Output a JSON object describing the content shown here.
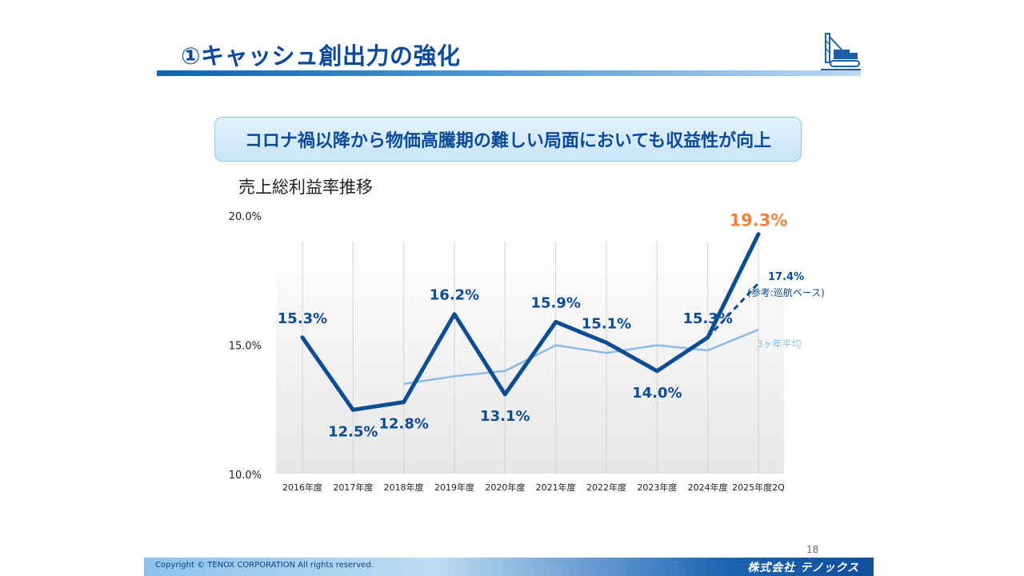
{
  "header": {
    "title": "①キャッシュ創出力の強化"
  },
  "callout": {
    "text": "コロナ禍以降から物価高騰期の難しい局面においても収益性が向上"
  },
  "chart_heading": "売上総利益率推移",
  "chart_data": {
    "type": "line",
    "title": "売上総利益率推移",
    "categories": [
      "2016年度",
      "2017年度",
      "2018年度",
      "2019年度",
      "2020年度",
      "2021年度",
      "2022年度",
      "2023年度",
      "2024年度",
      "2025年度2Q"
    ],
    "ylim": [
      10.0,
      20.0
    ],
    "yticks": [
      "10.0%",
      "15.0%",
      "20.0%"
    ],
    "grid": "vertical",
    "series": [
      {
        "role": "main",
        "values": [
          15.3,
          12.5,
          12.8,
          16.2,
          13.1,
          15.9,
          15.1,
          14.0,
          15.3,
          19.3
        ],
        "labels": [
          "15.3%",
          "12.5%",
          "12.8%",
          "16.2%",
          "13.1%",
          "15.9%",
          "15.1%",
          "14.0%",
          "15.3%",
          "19.3%"
        ],
        "color": "#0d4d93",
        "highlight_color": "#f0843c"
      },
      {
        "role": "reference",
        "name": "(参考:巡航ベース)",
        "value_label": "17.4%",
        "values": [
          null,
          null,
          null,
          null,
          null,
          null,
          null,
          null,
          15.3,
          17.4
        ],
        "color": "#0d4d93",
        "dashed": true
      },
      {
        "role": "average",
        "name": "3ヶ年平均",
        "values": [
          null,
          null,
          13.5,
          13.8,
          14.0,
          15.0,
          14.7,
          15.0,
          14.8,
          15.6
        ],
        "color": "#88bbe5"
      }
    ]
  },
  "footer": {
    "page_number": "18",
    "copyright": "Copyright © TENOX CORPORATION All rights reserved.",
    "logo_text": "株式会社 テノックス"
  }
}
